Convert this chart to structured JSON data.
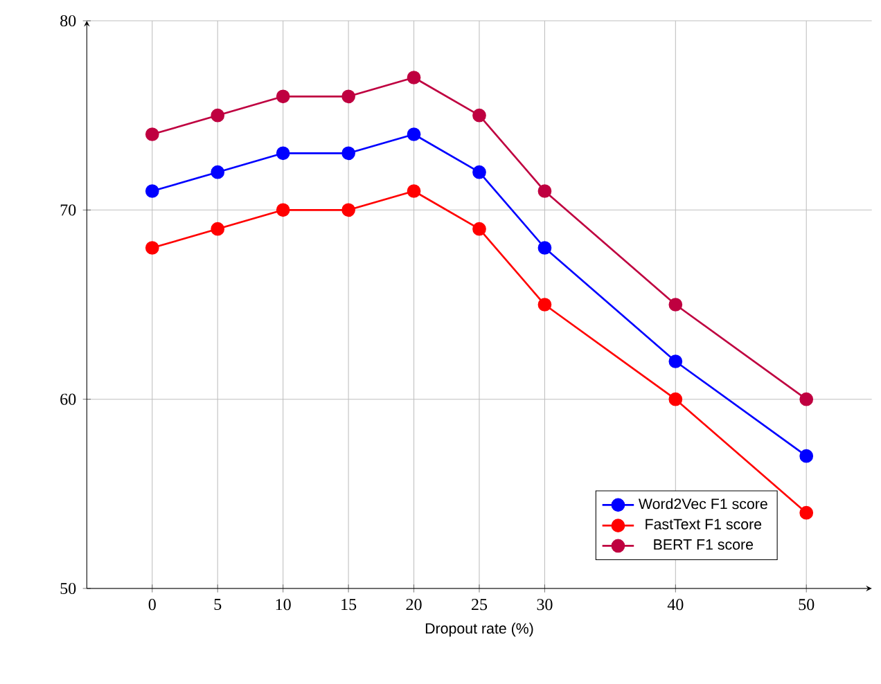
{
  "chart_data": {
    "type": "line",
    "xlabel": "Dropout rate (%)",
    "x": [
      0,
      5,
      10,
      15,
      20,
      25,
      30,
      40,
      50
    ],
    "series": [
      {
        "name": "Word2Vec F1 score",
        "color": "#0000ff",
        "values": [
          71,
          72,
          73,
          73,
          74,
          72,
          68,
          62,
          57
        ]
      },
      {
        "name": "FastText F1 score",
        "color": "#ff0000",
        "values": [
          68,
          69,
          70,
          70,
          71,
          69,
          65,
          60,
          54
        ]
      },
      {
        "name": "BERT F1 score",
        "color": "#bf0040",
        "values": [
          74,
          75,
          76,
          76,
          77,
          75,
          71,
          65,
          60
        ]
      }
    ],
    "xlim": [
      -5,
      55
    ],
    "ylim": [
      50,
      80
    ],
    "xticks": [
      0,
      5,
      10,
      15,
      20,
      25,
      30,
      40,
      50
    ],
    "yticks": [
      50,
      60,
      70,
      80
    ],
    "grid": true,
    "legend": "bottom right",
    "marker": "circle",
    "line_style": "solid"
  }
}
